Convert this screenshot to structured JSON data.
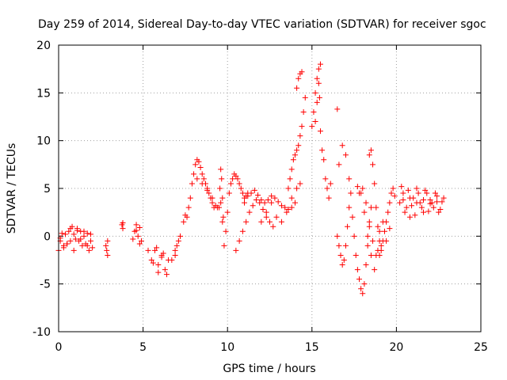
{
  "chart_data": {
    "type": "scatter",
    "title": "Day 259 of 2014, Sidereal Day-to-day VTEC variation (SDTVAR) for receiver sgoc",
    "xlabel": "GPS time / hours",
    "ylabel": "SDTVAR / TECUs",
    "xlim": [
      0,
      25
    ],
    "ylim": [
      -10,
      20
    ],
    "xticks": [
      "0",
      "5",
      "10",
      "15",
      "20",
      "25"
    ],
    "yticks": [
      "-10",
      "-5",
      "0",
      "5",
      "10",
      "15",
      "20"
    ],
    "grid": true,
    "marker": "+",
    "color": "#ff0000",
    "series": [
      {
        "name": "SDTVAR",
        "x": [
          0.0,
          0.1,
          0.2,
          0.3,
          0.4,
          0.5,
          0.6,
          0.7,
          0.8,
          0.9,
          1.0,
          1.1,
          1.2,
          1.3,
          1.4,
          1.5,
          1.6,
          1.7,
          1.8,
          1.9,
          2.0,
          0.1,
          0.3,
          0.5,
          0.7,
          0.9,
          1.1,
          1.3,
          1.5,
          1.7,
          1.9,
          2.8,
          2.85,
          2.9,
          2.9,
          3.75,
          3.8,
          3.8,
          4.4,
          4.5,
          4.6,
          4.7,
          4.8,
          4.9,
          4.6,
          4.8,
          5.3,
          5.5,
          5.7,
          5.9,
          6.1,
          6.3,
          6.5,
          5.6,
          5.9,
          6.2,
          6.4,
          5.8,
          6.1,
          6.7,
          6.9,
          7.1,
          7.2,
          6.9,
          7.0,
          7.4,
          7.5,
          7.6,
          7.7,
          7.8,
          7.9,
          8.0,
          8.1,
          8.2,
          8.3,
          8.4,
          8.5,
          8.6,
          8.7,
          8.8,
          8.9,
          9.0,
          9.1,
          9.2,
          9.3,
          8.2,
          8.5,
          8.8,
          9.1,
          9.4,
          9.5,
          9.55,
          9.6,
          9.65,
          9.7,
          9.75,
          9.6,
          9.7,
          9.8,
          9.9,
          10.0,
          10.1,
          10.2,
          10.3,
          10.4,
          10.5,
          10.6,
          10.7,
          10.8,
          10.9,
          11.0,
          11.1,
          11.2,
          10.5,
          10.7,
          10.9,
          11.1,
          11.3,
          11.5,
          11.7,
          11.9,
          12.1,
          12.3,
          12.5,
          12.7,
          11.0,
          11.2,
          11.4,
          11.6,
          11.8,
          12.0,
          12.2,
          12.4,
          12.6,
          12.8,
          13.0,
          13.2,
          13.4,
          13.6,
          13.8,
          14.0,
          12.0,
          12.3,
          12.6,
          12.9,
          13.2,
          13.5,
          13.8,
          14.1,
          14.3,
          13.6,
          13.7,
          13.8,
          13.9,
          14.0,
          14.1,
          14.2,
          14.3,
          14.4,
          14.5,
          14.6,
          14.1,
          14.2,
          14.3,
          14.4,
          15.0,
          15.1,
          15.2,
          15.3,
          15.4,
          15.5,
          15.2,
          15.3,
          15.4,
          15.45,
          15.5,
          15.6,
          15.7,
          15.8,
          15.9,
          16.0,
          16.1,
          16.5,
          16.6,
          16.7,
          16.8,
          16.9,
          17.0,
          17.1,
          17.2,
          16.6,
          16.8,
          17.0,
          17.2,
          17.3,
          16.5,
          17.4,
          17.5,
          17.6,
          17.7,
          17.8,
          17.9,
          18.0,
          18.1,
          18.2,
          18.3,
          18.4,
          18.5,
          17.8,
          18.0,
          18.2,
          18.4,
          18.6,
          18.8,
          17.7,
          17.9,
          18.1,
          18.3,
          18.5,
          18.7,
          18.9,
          18.4,
          18.5,
          18.6,
          18.7,
          18.8,
          18.9,
          19.0,
          19.1,
          19.0,
          19.0,
          19.1,
          19.2,
          19.3,
          19.4,
          19.5,
          19.6,
          19.7,
          19.8,
          19.9,
          19.2,
          19.4,
          19.6,
          20.2,
          20.4,
          20.6,
          20.8,
          21.0,
          21.2,
          21.4,
          21.6,
          21.8,
          22.0,
          22.2,
          22.4,
          22.6,
          22.8,
          20.3,
          20.5,
          20.7,
          20.9,
          21.1,
          21.3,
          21.5,
          21.7,
          21.9,
          22.1,
          22.3,
          22.5,
          22.7,
          20.4,
          20.8,
          21.2,
          21.6,
          22.0,
          22.4
        ],
        "y": [
          -1.5,
          -0.5,
          0.3,
          -1.0,
          0.2,
          -0.8,
          0.5,
          -0.5,
          1.0,
          0.2,
          -0.3,
          0.8,
          -0.5,
          0.5,
          -1.0,
          0.0,
          -0.8,
          0.3,
          -1.5,
          -0.5,
          -1.2,
          -0.2,
          -1.2,
          -0.8,
          0.8,
          -1.5,
          0.6,
          -0.3,
          0.5,
          -1.0,
          0.2,
          -1.0,
          -1.5,
          -2.0,
          -0.5,
          1.2,
          0.8,
          1.4,
          -0.3,
          0.5,
          1.2,
          0.0,
          -0.8,
          -0.5,
          0.6,
          0.9,
          -1.5,
          -2.5,
          -1.5,
          -3.0,
          -2.0,
          -3.5,
          -2.5,
          -2.8,
          -3.8,
          -1.8,
          -4.0,
          -1.2,
          -2.2,
          -2.5,
          -1.5,
          -0.5,
          0.0,
          -2.0,
          -1.0,
          1.5,
          2.2,
          2.0,
          3.0,
          4.0,
          5.5,
          6.5,
          7.5,
          8.0,
          7.8,
          7.2,
          6.5,
          6.0,
          5.5,
          5.0,
          4.5,
          4.0,
          3.5,
          3.0,
          3.2,
          6.0,
          5.5,
          4.8,
          4.0,
          3.0,
          3.0,
          5.0,
          7.0,
          6.0,
          4.0,
          2.0,
          3.5,
          1.5,
          -1.0,
          0.5,
          2.5,
          4.5,
          5.5,
          6.0,
          6.5,
          6.3,
          6.0,
          5.5,
          5.0,
          4.5,
          4.0,
          4.2,
          4.5,
          -1.5,
          -0.5,
          0.5,
          1.5,
          2.5,
          3.2,
          3.8,
          3.5,
          2.8,
          2.0,
          1.5,
          1.0,
          3.5,
          4.2,
          4.5,
          4.8,
          4.3,
          3.8,
          3.5,
          3.8,
          4.2,
          4.0,
          3.6,
          3.2,
          3.0,
          2.8,
          3.0,
          3.5,
          1.5,
          2.5,
          3.5,
          2.0,
          1.5,
          2.5,
          4.0,
          5.0,
          5.5,
          5.0,
          6.0,
          7.0,
          8.0,
          8.5,
          9.0,
          9.5,
          10.5,
          11.5,
          13.0,
          14.5,
          15.5,
          16.5,
          17.0,
          17.2,
          11.5,
          13.0,
          15.0,
          16.5,
          17.5,
          18.0,
          12.0,
          14.0,
          16.0,
          14.5,
          11.0,
          9.0,
          8.0,
          6.0,
          5.0,
          4.0,
          5.5,
          0.0,
          -1.0,
          -2.0,
          -3.0,
          -2.5,
          -1.0,
          1.0,
          3.0,
          7.5,
          9.5,
          8.5,
          6.0,
          4.5,
          13.3,
          2.0,
          0.0,
          -2.0,
          -3.5,
          -4.5,
          -5.5,
          -6.0,
          -5.0,
          -3.0,
          -1.0,
          1.0,
          3.0,
          4.5,
          5.0,
          3.5,
          1.5,
          -0.5,
          -2.0,
          5.2,
          4.5,
          2.5,
          0.0,
          -2.0,
          -3.5,
          -1.5,
          8.5,
          9.0,
          7.5,
          5.5,
          3.0,
          1.0,
          -0.5,
          -1.5,
          0.5,
          -2.0,
          -1.0,
          -0.5,
          0.5,
          1.5,
          2.5,
          3.5,
          4.5,
          5.0,
          4.2,
          1.5,
          -0.5,
          0.8,
          3.5,
          4.5,
          3.0,
          2.0,
          4.0,
          5.0,
          3.5,
          2.5,
          4.5,
          3.8,
          3.0,
          4.2,
          2.8,
          4.0,
          5.2,
          2.5,
          4.8,
          3.2,
          2.2,
          4.5,
          3.0,
          4.8,
          2.6,
          3.5,
          4.5,
          2.5,
          3.6,
          3.8,
          4.0,
          3.5,
          3.8,
          3.4,
          3.6
        ]
      }
    ]
  }
}
